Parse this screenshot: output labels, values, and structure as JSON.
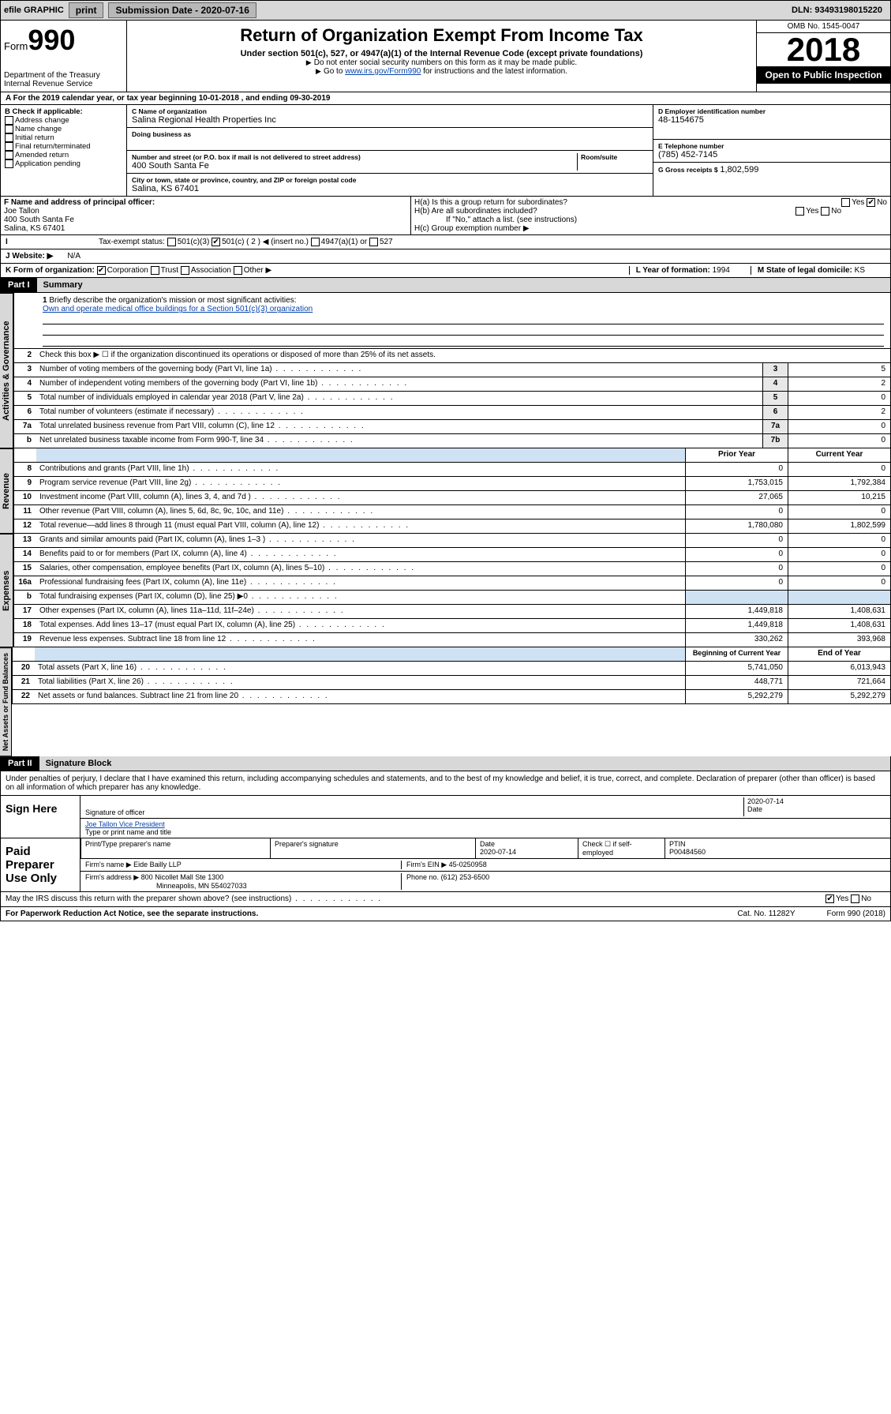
{
  "topbar": {
    "efile": "efile GRAPHIC",
    "print": "print",
    "subdate_label": "Submission Date - 2020-07-16",
    "dln_label": "DLN: 93493198015220"
  },
  "header": {
    "form_prefix": "Form",
    "form_num": "990",
    "dept": "Department of the Treasury\nInternal Revenue Service",
    "title": "Return of Organization Exempt From Income Tax",
    "subtitle": "Under section 501(c), 527, or 4947(a)(1) of the Internal Revenue Code (except private foundations)",
    "note1": "Do not enter social security numbers on this form as it may be made public.",
    "note2_pre": "Go to ",
    "note2_link": "www.irs.gov/Form990",
    "note2_post": " for instructions and the latest information.",
    "omb": "OMB No. 1545-0047",
    "year": "2018",
    "inspection": "Open to Public Inspection"
  },
  "period": "For the 2019 calendar year, or tax year beginning 10-01-2018  , and ending 09-30-2019",
  "boxB": {
    "label": "B Check if applicable:",
    "items": [
      "Address change",
      "Name change",
      "Initial return",
      "Final return/terminated",
      "Amended return",
      "Application pending"
    ]
  },
  "boxC": {
    "name_label": "C Name of organization",
    "name": "Salina Regional Health Properties Inc",
    "dba_label": "Doing business as",
    "addr_label": "Number and street (or P.O. box if mail is not delivered to street address)",
    "room_label": "Room/suite",
    "addr": "400 South Santa Fe",
    "city_label": "City or town, state or province, country, and ZIP or foreign postal code",
    "city": "Salina, KS  67401"
  },
  "boxD": {
    "label": "D Employer identification number",
    "val": "48-1154675"
  },
  "boxE": {
    "label": "E Telephone number",
    "val": "(785) 452-7145"
  },
  "boxG": {
    "label": "G Gross receipts $",
    "val": "1,802,599"
  },
  "boxF": {
    "label": "F  Name and address of principal officer:",
    "name": "Joe Tallon",
    "addr1": "400 South Santa Fe",
    "addr2": "Salina, KS  67401"
  },
  "boxH": {
    "a": "H(a)  Is this a group return for subordinates?",
    "b": "H(b)  Are all subordinates included?",
    "b_note": "If \"No,\" attach a list. (see instructions)",
    "c": "H(c)  Group exemption number ▶",
    "yes": "Yes",
    "no": "No"
  },
  "boxI": {
    "label": "Tax-exempt status:",
    "opts": [
      "501(c)(3)",
      "501(c) ( 2 ) ◀ (insert no.)",
      "4947(a)(1) or",
      "527"
    ]
  },
  "boxJ": {
    "label": "J   Website: ▶",
    "val": "N/A"
  },
  "boxK": {
    "label": "K Form of organization:",
    "opts": [
      "Corporation",
      "Trust",
      "Association",
      "Other ▶"
    ]
  },
  "boxL": {
    "label": "L Year of formation:",
    "val": "1994"
  },
  "boxM": {
    "label": "M State of legal domicile:",
    "val": "KS"
  },
  "part1": {
    "label": "Part I",
    "title": "Summary"
  },
  "mission": {
    "num": "1",
    "prompt": "Briefly describe the organization's mission or most significant activities:",
    "text": "Own and operate medical office buildings for a Section 501(c)(3) organization"
  },
  "gov_lines": [
    {
      "n": "2",
      "t": "Check this box ▶ ☐  if the organization discontinued its operations or disposed of more than 25% of its net assets."
    },
    {
      "n": "3",
      "t": "Number of voting members of the governing body (Part VI, line 1a)",
      "box": "3",
      "v": "5"
    },
    {
      "n": "4",
      "t": "Number of independent voting members of the governing body (Part VI, line 1b)",
      "box": "4",
      "v": "2"
    },
    {
      "n": "5",
      "t": "Total number of individuals employed in calendar year 2018 (Part V, line 2a)",
      "box": "5",
      "v": "0"
    },
    {
      "n": "6",
      "t": "Total number of volunteers (estimate if necessary)",
      "box": "6",
      "v": "2"
    },
    {
      "n": "7a",
      "t": "Total unrelated business revenue from Part VIII, column (C), line 12",
      "box": "7a",
      "v": "0"
    },
    {
      "n": "b",
      "t": "Net unrelated business taxable income from Form 990-T, line 34",
      "box": "7b",
      "v": "0"
    }
  ],
  "rev_hdr": {
    "py": "Prior Year",
    "cy": "Current Year"
  },
  "rev_lines": [
    {
      "n": "8",
      "t": "Contributions and grants (Part VIII, line 1h)",
      "py": "0",
      "cy": "0"
    },
    {
      "n": "9",
      "t": "Program service revenue (Part VIII, line 2g)",
      "py": "1,753,015",
      "cy": "1,792,384"
    },
    {
      "n": "10",
      "t": "Investment income (Part VIII, column (A), lines 3, 4, and 7d )",
      "py": "27,065",
      "cy": "10,215"
    },
    {
      "n": "11",
      "t": "Other revenue (Part VIII, column (A), lines 5, 6d, 8c, 9c, 10c, and 11e)",
      "py": "0",
      "cy": "0"
    },
    {
      "n": "12",
      "t": "Total revenue—add lines 8 through 11 (must equal Part VIII, column (A), line 12)",
      "py": "1,780,080",
      "cy": "1,802,599"
    }
  ],
  "exp_lines": [
    {
      "n": "13",
      "t": "Grants and similar amounts paid (Part IX, column (A), lines 1–3 )",
      "py": "0",
      "cy": "0"
    },
    {
      "n": "14",
      "t": "Benefits paid to or for members (Part IX, column (A), line 4)",
      "py": "0",
      "cy": "0"
    },
    {
      "n": "15",
      "t": "Salaries, other compensation, employee benefits (Part IX, column (A), lines 5–10)",
      "py": "0",
      "cy": "0"
    },
    {
      "n": "16a",
      "t": "Professional fundraising fees (Part IX, column (A), line 11e)",
      "py": "0",
      "cy": "0"
    },
    {
      "n": "b",
      "t": "Total fundraising expenses (Part IX, column (D), line 25) ▶0",
      "py": "",
      "cy": "",
      "shade": true
    },
    {
      "n": "17",
      "t": "Other expenses (Part IX, column (A), lines 11a–11d, 11f–24e)",
      "py": "1,449,818",
      "cy": "1,408,631"
    },
    {
      "n": "18",
      "t": "Total expenses. Add lines 13–17 (must equal Part IX, column (A), line 25)",
      "py": "1,449,818",
      "cy": "1,408,631"
    },
    {
      "n": "19",
      "t": "Revenue less expenses. Subtract line 18 from line 12",
      "py": "330,262",
      "cy": "393,968"
    }
  ],
  "na_hdr": {
    "by": "Beginning of Current Year",
    "ey": "End of Year"
  },
  "na_lines": [
    {
      "n": "20",
      "t": "Total assets (Part X, line 16)",
      "py": "5,741,050",
      "cy": "6,013,943"
    },
    {
      "n": "21",
      "t": "Total liabilities (Part X, line 26)",
      "py": "448,771",
      "cy": "721,664"
    },
    {
      "n": "22",
      "t": "Net assets or fund balances. Subtract line 21 from line 20",
      "py": "5,292,279",
      "cy": "5,292,279"
    }
  ],
  "part2": {
    "label": "Part II",
    "title": "Signature Block"
  },
  "perjury": "Under penalties of perjury, I declare that I have examined this return, including accompanying schedules and statements, and to the best of my knowledge and belief, it is true, correct, and complete. Declaration of preparer (other than officer) is based on all information of which preparer has any knowledge.",
  "sign": {
    "here": "Sign Here",
    "sig_label": "Signature of officer",
    "date_label": "Date",
    "date": "2020-07-14",
    "name": "Joe Tallon  Vice President",
    "name_label": "Type or print name and title"
  },
  "prep": {
    "title": "Paid Preparer Use Only",
    "col1": "Print/Type preparer's name",
    "col2": "Preparer's signature",
    "col3": "Date",
    "date": "2020-07-14",
    "col4": "Check ☐ if self-employed",
    "col5": "PTIN",
    "ptin": "P00484560",
    "firm_label": "Firm's name   ▶",
    "firm": "Eide Bailly LLP",
    "ein_label": "Firm's EIN ▶",
    "ein": "45-0250958",
    "addr_label": "Firm's address ▶",
    "addr": "800 Nicollet Mall Ste 1300",
    "addr2": "Minneapolis, MN  554027033",
    "phone_label": "Phone no.",
    "phone": "(612) 253-6500"
  },
  "discuss": "May the IRS discuss this return with the preparer shown above? (see instructions)",
  "discuss_yes": "Yes",
  "discuss_no": "No",
  "footer": {
    "pra": "For Paperwork Reduction Act Notice, see the separate instructions.",
    "cat": "Cat. No. 11282Y",
    "form": "Form 990 (2018)"
  },
  "vtabs": {
    "gov": "Activities & Governance",
    "rev": "Revenue",
    "exp": "Expenses",
    "na": "Net Assets or Fund Balances"
  }
}
